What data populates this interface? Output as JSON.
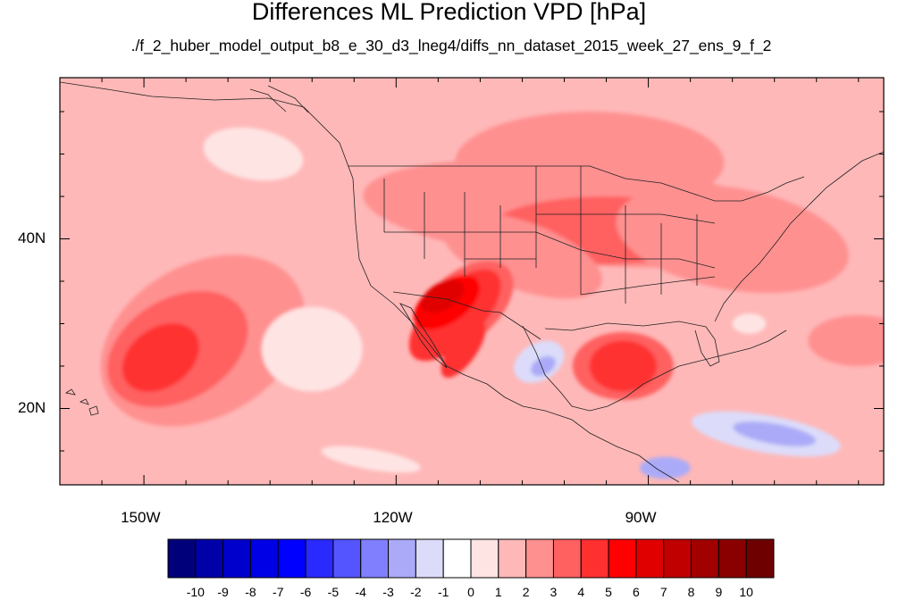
{
  "title": "Differences ML Prediction VPD [hPa]",
  "subtitle": "./f_2_huber_model_output_b8_e_30_d3_lneg4/diffs_nn_dataset_2015_week_27_ens_9_f_2",
  "map": {
    "lon_range": [
      -160,
      -62
    ],
    "lat_range": [
      11,
      59
    ],
    "lon_ticks": [
      {
        "value": -150,
        "label": "150W"
      },
      {
        "value": -120,
        "label": "120W"
      },
      {
        "value": -90,
        "label": "90W"
      }
    ],
    "lat_ticks": [
      {
        "value": 40,
        "label": "40N"
      },
      {
        "value": 20,
        "label": "20N"
      }
    ],
    "background_level": 1
  },
  "colorbar": {
    "labels": [
      "-10",
      "-9",
      "-8",
      "-7",
      "-6",
      "-5",
      "-4",
      "-3",
      "-2",
      "-1",
      "0",
      "1",
      "2",
      "3",
      "4",
      "5",
      "6",
      "7",
      "8",
      "9",
      "10"
    ],
    "colors": [
      "#00007a",
      "#0000a8",
      "#0000cc",
      "#0000e6",
      "#0000ff",
      "#2a2aff",
      "#5555ff",
      "#8080ff",
      "#aaaaf8",
      "#dcdcfa",
      "#ffffff",
      "#ffe4e4",
      "#ffb8b8",
      "#ff9090",
      "#ff6060",
      "#ff3030",
      "#ff0000",
      "#e00000",
      "#c00000",
      "#a00000",
      "#8a0000",
      "#6e0000"
    ]
  },
  "field_blobs": [
    {
      "lon": -143,
      "lat": 28,
      "rx": 13,
      "ry": 9,
      "rot": -30,
      "level": 2
    },
    {
      "lon": -146,
      "lat": 27,
      "rx": 9,
      "ry": 6,
      "rot": -30,
      "level": 3
    },
    {
      "lon": -148,
      "lat": 26,
      "rx": 5,
      "ry": 3.5,
      "rot": -35,
      "level": 4
    },
    {
      "lon": -97,
      "lat": 49,
      "rx": 16,
      "ry": 6,
      "rot": 0,
      "level": 2
    },
    {
      "lon": -98,
      "lat": 43,
      "rx": 26,
      "ry": 6,
      "rot": 5,
      "level": 2
    },
    {
      "lon": -95,
      "lat": 41,
      "rx": 14,
      "ry": 4,
      "rot": 0,
      "level": 3
    },
    {
      "lon": -80,
      "lat": 40,
      "rx": 14,
      "ry": 6,
      "rot": 10,
      "level": 2
    },
    {
      "lon": -105,
      "lat": 38,
      "rx": 10,
      "ry": 4,
      "rot": 20,
      "level": 2
    },
    {
      "lon": -112,
      "lat": 32,
      "rx": 7,
      "ry": 4,
      "rot": -40,
      "level": 3
    },
    {
      "lon": -113,
      "lat": 31,
      "rx": 7,
      "ry": 3.2,
      "rot": -45,
      "level": 4
    },
    {
      "lon": -114,
      "lat": 32.5,
      "rx": 4.5,
      "ry": 2.4,
      "rot": -35,
      "level": 5
    },
    {
      "lon": -114.5,
      "lat": 33.2,
      "rx": 2.8,
      "ry": 1.6,
      "rot": -30,
      "level": 6
    },
    {
      "lon": -112,
      "lat": 27,
      "rx": 4,
      "ry": 1.6,
      "rot": -55,
      "level": 4
    },
    {
      "lon": -93,
      "lat": 25,
      "rx": 6,
      "ry": 4,
      "rot": 0,
      "level": 3
    },
    {
      "lon": -93,
      "lat": 25,
      "rx": 4,
      "ry": 3,
      "rot": 0,
      "level": 4
    },
    {
      "lon": -65,
      "lat": 28,
      "rx": 6,
      "ry": 3,
      "rot": 0,
      "level": 2
    },
    {
      "lon": -137,
      "lat": 50,
      "rx": 6,
      "ry": 3,
      "rot": 10,
      "level": 0
    },
    {
      "lon": -130,
      "lat": 27,
      "rx": 6,
      "ry": 5,
      "rot": 0,
      "level": 0
    },
    {
      "lon": -103,
      "lat": 25.5,
      "rx": 3.2,
      "ry": 2.2,
      "rot": -30,
      "level": -2
    },
    {
      "lon": -102.5,
      "lat": 25,
      "rx": 1.6,
      "ry": 1,
      "rot": -30,
      "level": -3
    },
    {
      "lon": -76,
      "lat": 17,
      "rx": 9,
      "ry": 2.2,
      "rot": 10,
      "level": -2
    },
    {
      "lon": -75,
      "lat": 17,
      "rx": 5,
      "ry": 1.2,
      "rot": 10,
      "level": -3
    },
    {
      "lon": -88,
      "lat": 13,
      "rx": 3,
      "ry": 1.3,
      "rot": 0,
      "level": -3
    },
    {
      "lon": -123,
      "lat": 14,
      "rx": 6,
      "ry": 1.2,
      "rot": 10,
      "level": 0
    },
    {
      "lon": -78,
      "lat": 30,
      "rx": 2,
      "ry": 1.2,
      "rot": 0,
      "level": 0
    }
  ]
}
